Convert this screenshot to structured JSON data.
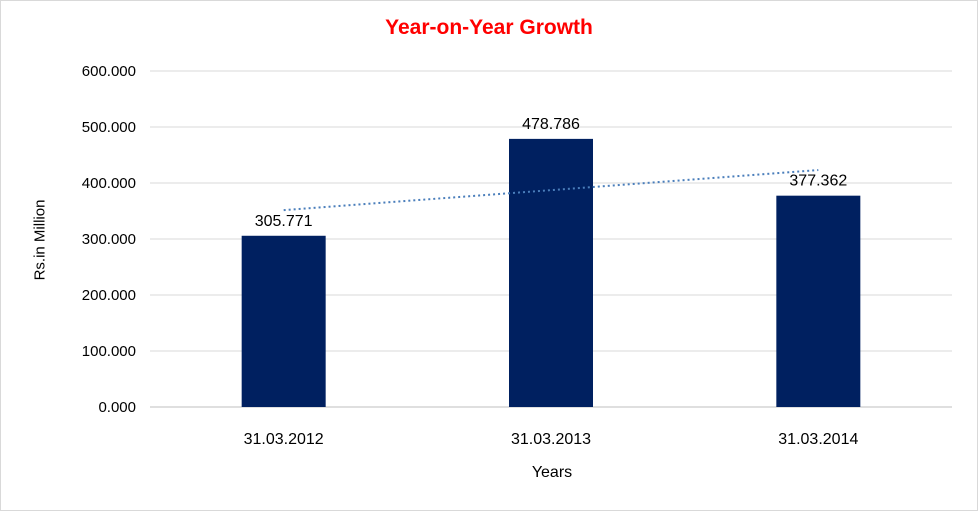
{
  "chart_data": {
    "type": "bar",
    "title": "Year-on-Year Growth",
    "xlabel": "Years",
    "ylabel": "Rs.in Million",
    "categories": [
      "31.03.2012",
      "31.03.2013",
      "31.03.2014"
    ],
    "values": [
      305.771,
      478.786,
      377.362
    ],
    "value_labels": [
      "305.771",
      "478.786",
      "377.362"
    ],
    "ylim": [
      0,
      600
    ],
    "yticks": [
      "0.000",
      "100.000",
      "200.000",
      "300.000",
      "400.000",
      "500.000",
      "600.000"
    ],
    "grid": true,
    "trendline": "linear, dotted",
    "colors": {
      "bar": "#002060",
      "trendline": "#4a7ebb",
      "title": "#ff0000",
      "grid": "#d9d9d9"
    }
  }
}
